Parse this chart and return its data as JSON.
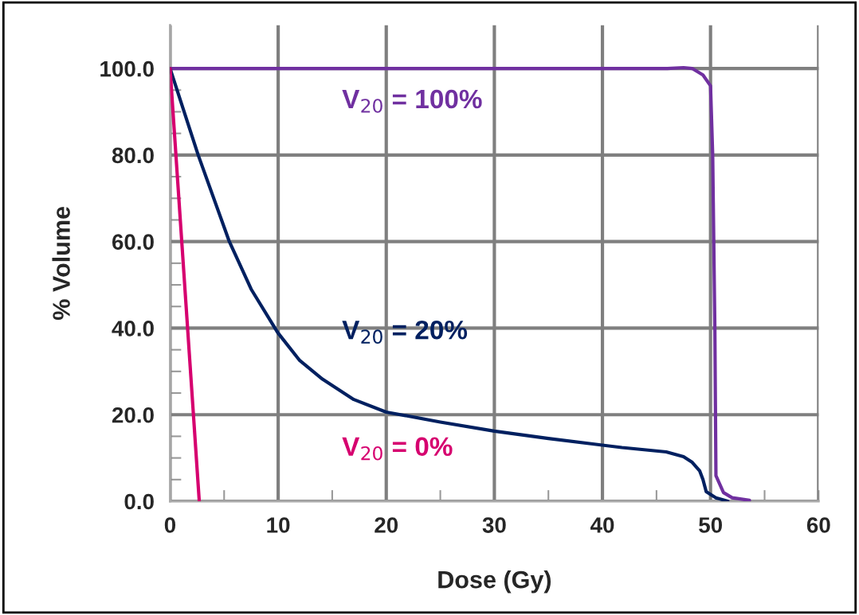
{
  "chart_data": {
    "type": "line",
    "xlabel": "Dose (Gy)",
    "ylabel": "% Volume",
    "xlim": [
      0,
      60
    ],
    "ylim": [
      0,
      110
    ],
    "xticks": [
      0,
      {
        "value": 5,
        "label": null
      },
      10,
      {
        "value": 15,
        "label": null
      },
      20,
      {
        "value": 25,
        "label": null
      },
      30,
      {
        "value": 35,
        "label": null
      },
      40,
      {
        "value": 45,
        "label": null
      },
      50,
      {
        "value": 55,
        "label": null
      },
      60
    ],
    "yticks": [
      {
        "value": 0,
        "label": "0.0"
      },
      {
        "value": 5,
        "label": null
      },
      {
        "value": 10,
        "label": null
      },
      {
        "value": 15,
        "label": null
      },
      {
        "value": 20,
        "label": "20.0"
      },
      {
        "value": 25,
        "label": null
      },
      {
        "value": 30,
        "label": null
      },
      {
        "value": 35,
        "label": null
      },
      {
        "value": 40,
        "label": "40.0"
      },
      {
        "value": 45,
        "label": null
      },
      {
        "value": 50,
        "label": null
      },
      {
        "value": 55,
        "label": null
      },
      {
        "value": 60,
        "label": "60.0"
      },
      {
        "value": 65,
        "label": null
      },
      {
        "value": 70,
        "label": null
      },
      {
        "value": 75,
        "label": null
      },
      {
        "value": 80,
        "label": "80.0"
      },
      {
        "value": 85,
        "label": null
      },
      {
        "value": 90,
        "label": null
      },
      {
        "value": 95,
        "label": null
      },
      {
        "value": 100,
        "label": "100.0"
      }
    ],
    "grid": true,
    "marker": "none",
    "line_style": "solid",
    "legend": false,
    "series": [
      {
        "name": "V$_{20}$ = 100%",
        "color": "#7030a0",
        "x": [
          0,
          46,
          47.5,
          48.3,
          49.3,
          50.0,
          50.2,
          50.4,
          50.5,
          51.2,
          52,
          53.6
        ],
        "values": [
          100,
          100,
          100.2,
          100,
          98.5,
          96,
          80,
          40,
          5.9,
          2,
          0.8,
          0.2
        ]
      },
      {
        "name": "V$_{20}$ = 20%",
        "color": "#002060",
        "x": [
          0,
          2.6,
          5.45,
          7.5,
          9.95,
          12,
          14.1,
          17,
          20.0,
          25,
          30.0,
          35,
          41.8,
          45.9,
          47.5,
          48.3,
          49.0,
          49.3,
          49.6,
          50.5,
          51.6
        ],
        "values": [
          100,
          80,
          60.2,
          49,
          39,
          32.5,
          28.2,
          23.5,
          20.6,
          18.3,
          16.2,
          14.5,
          12.4,
          11.4,
          10.3,
          9.0,
          7.0,
          5.0,
          2.2,
          0.8,
          0
        ]
      },
      {
        "name": "V$_{20}$ = 0%",
        "color": "#d6006f",
        "x": [
          0,
          2.7
        ],
        "values": [
          100,
          0
        ]
      }
    ]
  }
}
